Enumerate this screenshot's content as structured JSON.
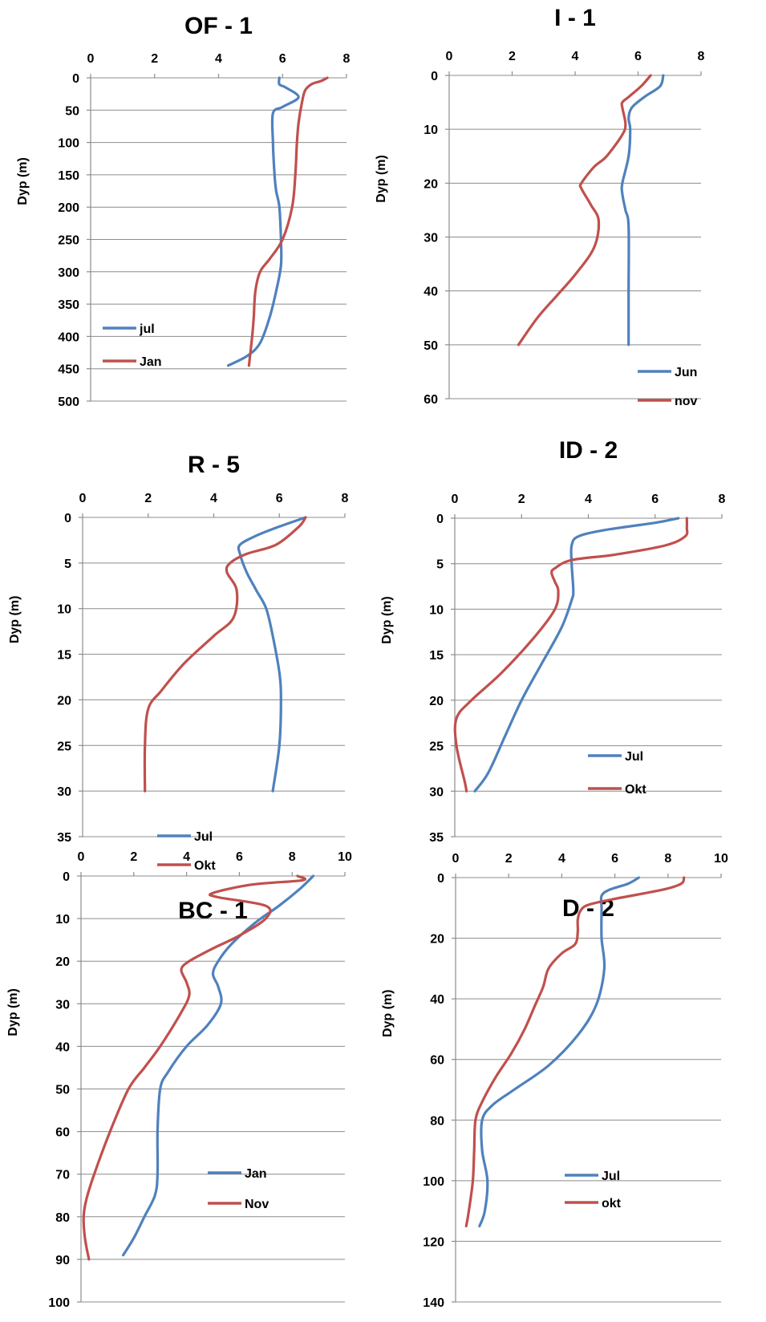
{
  "chart_data": [
    {
      "type": "line",
      "title": "OF - 1",
      "ylabel": "Dyp (m)",
      "xlim": [
        0,
        8
      ],
      "xticks": [
        0,
        2,
        4,
        6,
        8
      ],
      "ylim": [
        0,
        500
      ],
      "yticks": [
        0,
        50,
        100,
        150,
        200,
        250,
        300,
        350,
        400,
        450,
        500
      ],
      "y_inverted": true,
      "x_axis_position": "top",
      "legend_position": "bottom-left",
      "series": [
        {
          "name": "jul",
          "color": "#4f81bd",
          "points": [
            [
              5.9,
              0
            ],
            [
              5.9,
              10
            ],
            [
              6.1,
              15
            ],
            [
              6.5,
              30
            ],
            [
              6.0,
              45
            ],
            [
              5.7,
              55
            ],
            [
              5.7,
              100
            ],
            [
              5.75,
              150
            ],
            [
              5.8,
              175
            ],
            [
              5.9,
              200
            ],
            [
              5.95,
              250
            ],
            [
              5.95,
              290
            ],
            [
              5.8,
              330
            ],
            [
              5.6,
              370
            ],
            [
              5.3,
              410
            ],
            [
              4.9,
              430
            ],
            [
              4.3,
              445
            ]
          ]
        },
        {
          "name": "Jan",
          "color": "#c0504d",
          "points": [
            [
              7.4,
              0
            ],
            [
              7.2,
              5
            ],
            [
              6.9,
              10
            ],
            [
              6.7,
              20
            ],
            [
              6.6,
              40
            ],
            [
              6.5,
              70
            ],
            [
              6.45,
              100
            ],
            [
              6.4,
              150
            ],
            [
              6.3,
              200
            ],
            [
              6.0,
              250
            ],
            [
              5.6,
              280
            ],
            [
              5.3,
              300
            ],
            [
              5.15,
              330
            ],
            [
              5.1,
              370
            ],
            [
              5.05,
              400
            ],
            [
              4.95,
              445
            ]
          ]
        }
      ]
    },
    {
      "type": "line",
      "title": "I - 1",
      "ylabel": "Dyp (m)",
      "xlim": [
        0,
        8
      ],
      "xticks": [
        0,
        2,
        4,
        6,
        8
      ],
      "ylim": [
        0,
        60
      ],
      "yticks": [
        0,
        10,
        20,
        30,
        40,
        50,
        60
      ],
      "y_inverted": true,
      "x_axis_position": "top",
      "legend_position": "bottom-right",
      "series": [
        {
          "name": "Jun",
          "color": "#4f81bd",
          "points": [
            [
              6.8,
              0
            ],
            [
              6.7,
              2
            ],
            [
              6.2,
              4
            ],
            [
              5.8,
              6
            ],
            [
              5.7,
              8
            ],
            [
              5.75,
              10
            ],
            [
              5.7,
              15
            ],
            [
              5.5,
              20
            ],
            [
              5.5,
              22
            ],
            [
              5.6,
              25
            ],
            [
              5.7,
              28
            ],
            [
              5.7,
              40
            ],
            [
              5.7,
              50
            ]
          ]
        },
        {
          "name": "nov",
          "color": "#c0504d",
          "points": [
            [
              6.4,
              0
            ],
            [
              6.1,
              2
            ],
            [
              5.7,
              4
            ],
            [
              5.5,
              5
            ],
            [
              5.5,
              6
            ],
            [
              5.6,
              9
            ],
            [
              5.5,
              11
            ],
            [
              5.0,
              15
            ],
            [
              4.6,
              17
            ],
            [
              4.2,
              20
            ],
            [
              4.2,
              21
            ],
            [
              4.5,
              24
            ],
            [
              4.75,
              27
            ],
            [
              4.6,
              32
            ],
            [
              4.0,
              37
            ],
            [
              3.4,
              41
            ],
            [
              2.8,
              45
            ],
            [
              2.2,
              50
            ]
          ]
        }
      ]
    },
    {
      "type": "line",
      "title": "R - 5",
      "ylabel": "Dyp (m)",
      "xlim": [
        0,
        8
      ],
      "xticks": [
        0,
        2,
        4,
        6,
        8
      ],
      "ylim": [
        0,
        35
      ],
      "yticks": [
        0,
        5,
        10,
        15,
        20,
        25,
        30,
        35
      ],
      "y_inverted": true,
      "x_axis_position": "top",
      "legend_position": "bottom-left",
      "series": [
        {
          "name": "Jul",
          "color": "#4f81bd",
          "points": [
            [
              6.8,
              0
            ],
            [
              6.0,
              1
            ],
            [
              5.3,
              2
            ],
            [
              4.8,
              3
            ],
            [
              4.8,
              4
            ],
            [
              5.0,
              6
            ],
            [
              5.3,
              8
            ],
            [
              5.6,
              10
            ],
            [
              5.8,
              13
            ],
            [
              6.0,
              17
            ],
            [
              6.05,
              20
            ],
            [
              6.0,
              25
            ],
            [
              5.8,
              30
            ]
          ]
        },
        {
          "name": "Okt",
          "color": "#c0504d",
          "points": [
            [
              6.8,
              0
            ],
            [
              6.6,
              1
            ],
            [
              5.9,
              3
            ],
            [
              5.0,
              4
            ],
            [
              4.5,
              5
            ],
            [
              4.4,
              6
            ],
            [
              4.7,
              8
            ],
            [
              4.6,
              11
            ],
            [
              4.0,
              13
            ],
            [
              3.1,
              16
            ],
            [
              2.4,
              19
            ],
            [
              2.0,
              21
            ],
            [
              1.9,
              25
            ],
            [
              1.9,
              30
            ]
          ]
        }
      ]
    },
    {
      "type": "line",
      "title": "ID - 2",
      "ylabel": "Dyp (m)",
      "xlim": [
        0,
        8
      ],
      "xticks": [
        0,
        2,
        4,
        6,
        8
      ],
      "ylim": [
        0,
        35
      ],
      "yticks": [
        0,
        5,
        10,
        15,
        20,
        25,
        30,
        35
      ],
      "y_inverted": true,
      "x_axis_position": "top",
      "legend_position": "bottom-right",
      "series": [
        {
          "name": "Jul",
          "color": "#4f81bd",
          "points": [
            [
              6.7,
              0
            ],
            [
              6.0,
              0.5
            ],
            [
              4.5,
              1.3
            ],
            [
              3.7,
              2
            ],
            [
              3.5,
              3
            ],
            [
              3.5,
              5
            ],
            [
              3.55,
              8
            ],
            [
              3.5,
              9
            ],
            [
              3.2,
              12
            ],
            [
              2.6,
              16
            ],
            [
              2.0,
              20
            ],
            [
              1.5,
              24
            ],
            [
              1.0,
              28
            ],
            [
              0.6,
              30
            ]
          ]
        },
        {
          "name": "Okt",
          "color": "#c0504d",
          "points": [
            [
              6.95,
              0
            ],
            [
              6.95,
              1
            ],
            [
              6.9,
              2
            ],
            [
              6.3,
              3
            ],
            [
              4.8,
              4
            ],
            [
              3.5,
              4.6
            ],
            [
              3.0,
              5.5
            ],
            [
              2.9,
              6
            ],
            [
              3.0,
              7
            ],
            [
              3.1,
              8
            ],
            [
              3.0,
              10
            ],
            [
              2.4,
              13
            ],
            [
              1.4,
              17
            ],
            [
              0.5,
              20
            ],
            [
              0.05,
              22
            ],
            [
              0.05,
              25
            ],
            [
              0.3,
              29
            ],
            [
              0.35,
              30
            ]
          ]
        }
      ]
    },
    {
      "type": "line",
      "title": "BC - 1",
      "ylabel": "Dyp (m)",
      "xlim": [
        0,
        10
      ],
      "xticks": [
        0,
        2,
        4,
        6,
        8,
        10
      ],
      "ylim": [
        0,
        100
      ],
      "yticks": [
        0,
        10,
        20,
        30,
        40,
        50,
        60,
        70,
        80,
        90,
        100
      ],
      "y_inverted": true,
      "x_axis_position": "top",
      "legend_position": "bottom-right",
      "series": [
        {
          "name": "Jan",
          "color": "#4f81bd",
          "points": [
            [
              8.8,
              0
            ],
            [
              8.3,
              3
            ],
            [
              7.5,
              7
            ],
            [
              6.6,
              11
            ],
            [
              5.7,
              16
            ],
            [
              5.2,
              20
            ],
            [
              5.0,
              23
            ],
            [
              5.2,
              26
            ],
            [
              5.3,
              30
            ],
            [
              4.8,
              35
            ],
            [
              4.0,
              40
            ],
            [
              3.3,
              46
            ],
            [
              3.0,
              50
            ],
            [
              2.9,
              60
            ],
            [
              2.9,
              70
            ],
            [
              2.8,
              75
            ],
            [
              2.4,
              80
            ],
            [
              2.0,
              85
            ],
            [
              1.6,
              89
            ]
          ]
        },
        {
          "name": "Nov",
          "color": "#c0504d",
          "points": [
            [
              8.2,
              0
            ],
            [
              8.4,
              1
            ],
            [
              6.5,
              2
            ],
            [
              5.0,
              4
            ],
            [
              5.2,
              5
            ],
            [
              7.0,
              7
            ],
            [
              7.0,
              10
            ],
            [
              6.0,
              14
            ],
            [
              5.0,
              17
            ],
            [
              4.1,
              20
            ],
            [
              3.8,
              22
            ],
            [
              4.0,
              25
            ],
            [
              4.1,
              28
            ],
            [
              3.8,
              32
            ],
            [
              3.0,
              40
            ],
            [
              2.4,
              45
            ],
            [
              1.8,
              50
            ],
            [
              1.1,
              60
            ],
            [
              0.5,
              70
            ],
            [
              0.2,
              76
            ],
            [
              0.1,
              80
            ],
            [
              0.15,
              85
            ],
            [
              0.3,
              90
            ]
          ]
        }
      ]
    },
    {
      "type": "line",
      "title": "D - 2",
      "ylabel": "Dyp (m)",
      "xlim": [
        0,
        10
      ],
      "xticks": [
        0,
        2,
        4,
        6,
        8,
        10
      ],
      "ylim": [
        0,
        140
      ],
      "yticks": [
        0,
        20,
        40,
        60,
        80,
        100,
        120,
        140
      ],
      "y_inverted": true,
      "x_axis_position": "top",
      "legend_position": "bottom-right",
      "series": [
        {
          "name": "Jul",
          "color": "#4f81bd",
          "points": [
            [
              6.9,
              0
            ],
            [
              6.5,
              2
            ],
            [
              5.8,
              4
            ],
            [
              5.5,
              6
            ],
            [
              5.5,
              10
            ],
            [
              5.5,
              20
            ],
            [
              5.6,
              30
            ],
            [
              5.3,
              42
            ],
            [
              4.6,
              52
            ],
            [
              3.5,
              62
            ],
            [
              2.2,
              70
            ],
            [
              1.4,
              75
            ],
            [
              1.0,
              80
            ],
            [
              1.0,
              90
            ],
            [
              1.2,
              100
            ],
            [
              1.1,
              110
            ],
            [
              0.9,
              115
            ]
          ]
        },
        {
          "name": "okt",
          "color": "#c0504d",
          "points": [
            [
              8.6,
              0
            ],
            [
              8.5,
              2
            ],
            [
              7.8,
              4
            ],
            [
              6.0,
              7
            ],
            [
              5.0,
              9
            ],
            [
              4.7,
              11
            ],
            [
              4.6,
              14
            ],
            [
              4.6,
              18
            ],
            [
              4.5,
              22
            ],
            [
              4.0,
              25
            ],
            [
              3.5,
              30
            ],
            [
              3.3,
              36
            ],
            [
              3.0,
              42
            ],
            [
              2.6,
              50
            ],
            [
              2.1,
              58
            ],
            [
              1.5,
              66
            ],
            [
              1.0,
              74
            ],
            [
              0.75,
              80
            ],
            [
              0.7,
              90
            ],
            [
              0.65,
              100
            ],
            [
              0.5,
              110
            ],
            [
              0.4,
              115
            ]
          ]
        }
      ]
    }
  ]
}
